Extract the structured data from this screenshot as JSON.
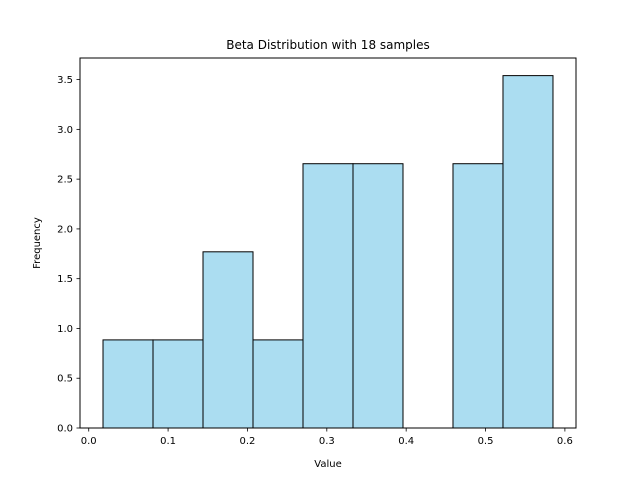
{
  "chart_data": {
    "type": "bar",
    "title": "Beta Distribution with 18 samples",
    "xlabel": "Value",
    "ylabel": "Frequency",
    "bins": [
      {
        "x0": 0.018,
        "x1": 0.081,
        "value": 0.885
      },
      {
        "x0": 0.081,
        "x1": 0.144,
        "value": 0.885
      },
      {
        "x0": 0.144,
        "x1": 0.207,
        "value": 1.77
      },
      {
        "x0": 0.207,
        "x1": 0.27,
        "value": 0.885
      },
      {
        "x0": 0.27,
        "x1": 0.333,
        "value": 2.655
      },
      {
        "x0": 0.333,
        "x1": 0.396,
        "value": 2.655
      },
      {
        "x0": 0.396,
        "x1": 0.459,
        "value": 0
      },
      {
        "x0": 0.459,
        "x1": 0.522,
        "value": 2.655
      },
      {
        "x0": 0.522,
        "x1": 0.585,
        "value": 3.54
      }
    ],
    "xlim": [
      -0.011,
      0.614
    ],
    "ylim": [
      0,
      3.717
    ],
    "x_ticks": [
      0.0,
      0.1,
      0.2,
      0.3,
      0.4,
      0.5,
      0.6
    ],
    "x_tick_labels": [
      "0.0",
      "0.1",
      "0.2",
      "0.3",
      "0.4",
      "0.5",
      "0.6"
    ],
    "y_ticks": [
      0.0,
      0.5,
      1.0,
      1.5,
      2.0,
      2.5,
      3.0,
      3.5
    ],
    "y_tick_labels": [
      "0.0",
      "0.5",
      "1.0",
      "1.5",
      "2.0",
      "2.5",
      "3.0",
      "3.5"
    ],
    "grid": false,
    "colors": {
      "bar_fill": "#87ceeb",
      "bar_edge": "#000000"
    }
  }
}
